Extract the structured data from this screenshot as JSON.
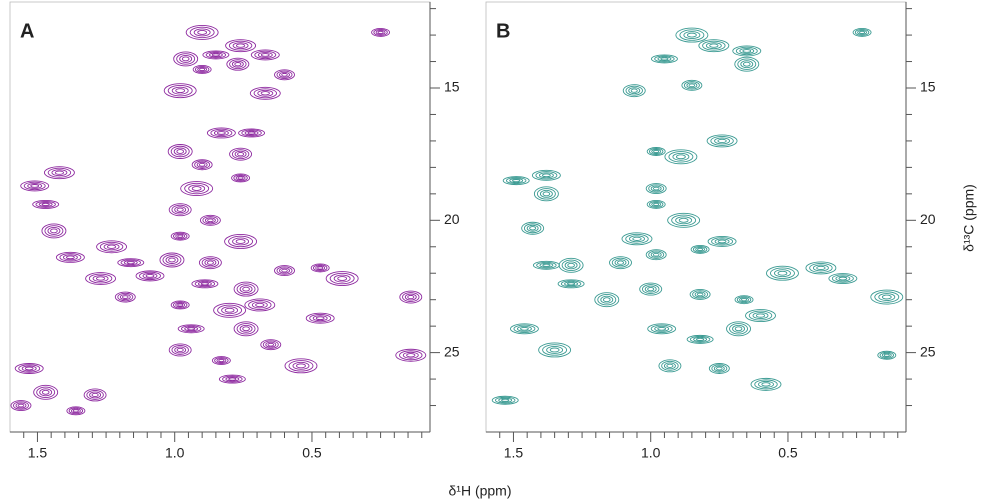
{
  "chart_data": [
    {
      "type": "contour",
      "panel_label": "A",
      "color": "#8e2aa0",
      "x_label": "δ¹H (ppm)",
      "x": [
        0.25,
        0.9,
        0.76,
        0.67,
        0.85,
        0.96,
        0.77,
        0.6,
        0.9,
        0.98,
        0.67,
        0.83,
        0.72,
        0.98,
        0.76,
        0.9,
        0.76,
        0.92,
        1.42,
        1.51,
        1.47,
        1.44,
        0.98,
        0.87,
        0.98,
        0.76,
        1.23,
        1.38,
        1.16,
        1.01,
        0.87,
        0.6,
        0.47,
        0.39,
        1.27,
        1.09,
        0.89,
        0.74,
        0.14,
        1.18,
        0.98,
        0.8,
        0.69,
        0.47,
        0.94,
        0.74,
        0.98,
        0.65,
        0.83,
        0.54,
        0.14,
        1.53,
        0.79,
        1.47,
        1.29,
        1.56,
        1.36
      ],
      "y": [
        12.9,
        12.9,
        13.4,
        13.75,
        13.75,
        13.9,
        14.1,
        14.5,
        14.3,
        15.1,
        15.2,
        16.7,
        16.7,
        17.4,
        17.5,
        17.9,
        18.4,
        18.8,
        18.2,
        18.7,
        19.4,
        20.4,
        19.6,
        20,
        20.6,
        20.8,
        21,
        21.4,
        21.6,
        21.5,
        21.6,
        21.9,
        21.8,
        22.2,
        22.2,
        22.1,
        22.4,
        22.6,
        22.9,
        22.9,
        23.2,
        23.4,
        23.2,
        23.7,
        24.1,
        24.1,
        24.9,
        24.7,
        25.3,
        25.5,
        25.1,
        25.6,
        26,
        26.5,
        26.6,
        27,
        27.2
      ],
      "xlim": [
        1.6,
        0.07
      ],
      "ylim": [
        11.75,
        28
      ],
      "xticks": [
        1.5,
        {
          "value": 1,
          "label": "1.0"
        },
        0.5
      ],
      "xminorticks": [
        1.55,
        1.45,
        1.4,
        1.35,
        1.3,
        1.25,
        1.2,
        1.15,
        1.1,
        1.05,
        0.95,
        0.9,
        0.85,
        0.8,
        0.75,
        0.7,
        0.65,
        0.6,
        0.55,
        0.45,
        0.4,
        0.35,
        0.3,
        0.25,
        0.2,
        0.15,
        0.1
      ],
      "yticks": [
        15,
        20,
        25
      ],
      "yminorticks": [
        12,
        13,
        14,
        16,
        17,
        18,
        19,
        21,
        22,
        23,
        24,
        26,
        27
      ]
    },
    {
      "type": "contour",
      "panel_label": "B",
      "color": "#3a9a92",
      "y_label": "δ¹³C (ppm)",
      "x": [
        0.23,
        0.85,
        0.77,
        0.65,
        0.95,
        0.65,
        1.06,
        0.85,
        0.98,
        0.89,
        0.74,
        1.38,
        1.49,
        1.38,
        1.43,
        0.98,
        0.98,
        0.88,
        1.05,
        0.74,
        1.38,
        1.29,
        1.11,
        0.98,
        0.82,
        0.52,
        0.38,
        0.3,
        1.29,
        1.16,
        1.0,
        0.82,
        0.66,
        0.14,
        0.6,
        0.96,
        0.82,
        0.68,
        0.93,
        0.75,
        0.14,
        1.35,
        0.58,
        1.46,
        1.53
      ],
      "y": [
        12.9,
        13,
        13.4,
        13.6,
        13.9,
        14.1,
        15.1,
        14.9,
        17.4,
        17.6,
        17,
        18.3,
        18.5,
        19,
        20.3,
        18.8,
        19.4,
        20,
        20.7,
        20.8,
        21.7,
        21.7,
        21.6,
        21.3,
        21.1,
        22,
        21.8,
        22.2,
        22.4,
        23,
        22.6,
        22.8,
        23,
        22.9,
        23.6,
        24.1,
        24.5,
        24.1,
        25.5,
        25.6,
        25.1,
        24.9,
        26.2,
        24.1,
        26.8
      ],
      "xlim": [
        1.6,
        0.07
      ],
      "ylim": [
        11.75,
        28
      ],
      "xticks": [
        1.5,
        {
          "value": 1,
          "label": "1.0"
        },
        0.5
      ],
      "xminorticks": [
        1.55,
        1.45,
        1.4,
        1.35,
        1.3,
        1.25,
        1.2,
        1.15,
        1.1,
        1.05,
        0.95,
        0.9,
        0.85,
        0.8,
        0.75,
        0.7,
        0.65,
        0.6,
        0.55,
        0.45,
        0.4,
        0.35,
        0.3,
        0.25,
        0.2,
        0.15,
        0.1
      ],
      "yticks": [
        15,
        20,
        25
      ],
      "yminorticks": [
        12,
        13,
        14,
        16,
        17,
        18,
        19,
        21,
        22,
        23,
        24,
        26,
        27
      ]
    }
  ]
}
